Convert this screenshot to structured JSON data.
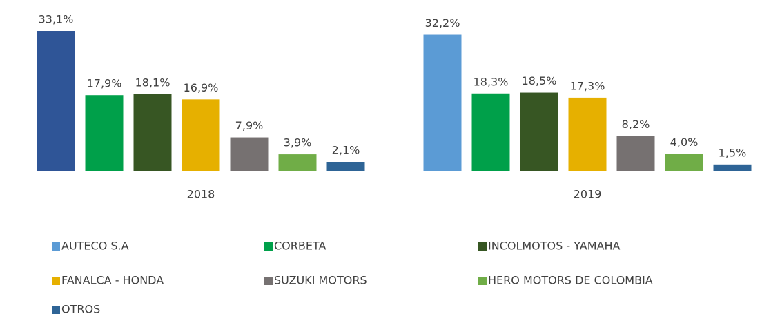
{
  "chart_data": {
    "type": "bar",
    "categories": [
      "2018",
      "2019"
    ],
    "series": [
      {
        "name": "AUTECO S.A",
        "color": "#5b9bd5",
        "colors": [
          "#2f5597",
          "#5b9bd5"
        ],
        "values": [
          33.1,
          32.2
        ],
        "value_labels": [
          "33,1%",
          "32,2%"
        ]
      },
      {
        "name": "CORBETA",
        "color": "#00a04a",
        "values": [
          17.9,
          18.3
        ],
        "value_labels": [
          "17,9%",
          "18,3%"
        ]
      },
      {
        "name": "INCOLMOTOS - YAMAHA",
        "color": "#375623",
        "values": [
          18.1,
          18.5
        ],
        "value_labels": [
          "18,1%",
          "18,5%"
        ]
      },
      {
        "name": "FANALCA - HONDA",
        "color": "#e6b000",
        "values": [
          16.9,
          17.3
        ],
        "value_labels": [
          "16,9%",
          "17,3%"
        ]
      },
      {
        "name": "SUZUKI MOTORS",
        "color": "#767171",
        "values": [
          7.9,
          8.2
        ],
        "value_labels": [
          "7,9%",
          "8,2%"
        ]
      },
      {
        "name": "HERO MOTORS DE COLOMBIA",
        "color": "#70ad47",
        "values": [
          3.9,
          4.0
        ],
        "value_labels": [
          "3,9%",
          "4,0%"
        ]
      },
      {
        "name": "OTROS",
        "color": "#2e6496",
        "values": [
          2.1,
          1.5
        ],
        "value_labels": [
          "2,1%",
          "1,5%"
        ]
      }
    ],
    "legend": "bottom"
  }
}
